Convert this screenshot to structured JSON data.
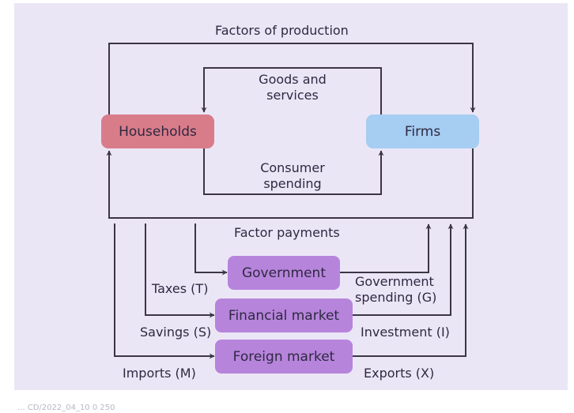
{
  "colors": {
    "background": "#ebe6f6",
    "households": "#d97c8a",
    "firms": "#a6cdf2",
    "sector": "#b784dc",
    "line": "#3b3545"
  },
  "nodes": {
    "households": "Households",
    "firms": "Firms",
    "government": "Government",
    "financial_market": "Financial market",
    "foreign_market": "Foreign market"
  },
  "flows": {
    "factors_of_production": "Factors of production",
    "goods_and_services": [
      "Goods and",
      "services"
    ],
    "consumer_spending": [
      "Consumer",
      "spending"
    ],
    "factor_payments": "Factor payments",
    "taxes": "Taxes (T)",
    "savings": "Savings (S)",
    "imports": "Imports (M)",
    "government_spending": [
      "Government",
      "spending (G)"
    ],
    "investment": "Investment (I)",
    "exports": "Exports (X)"
  },
  "footer": "... CD/2022_04_10 0 250"
}
